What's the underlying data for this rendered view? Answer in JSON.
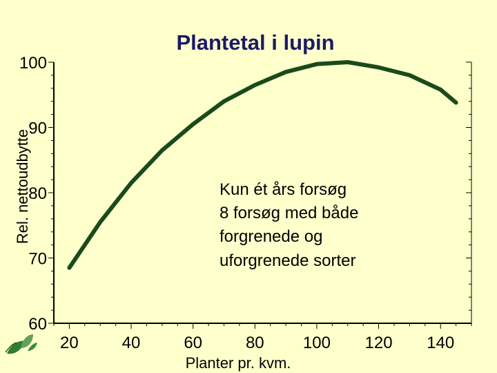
{
  "chart_data": {
    "type": "line",
    "title": "Plantetal i lupin",
    "xlabel": "Planter pr. kvm.",
    "ylabel": "Rel. nettoudbytte",
    "xlim": [
      15,
      150
    ],
    "ylim": [
      60,
      100
    ],
    "x_ticks": [
      "20",
      "40",
      "60",
      "80",
      "100",
      "120",
      "140"
    ],
    "y_ticks": [
      "60",
      "70",
      "80",
      "90",
      "100"
    ],
    "grid": false,
    "series": [
      {
        "color": "#1a4a1a",
        "x": [
          20,
          30,
          40,
          50,
          60,
          70,
          80,
          90,
          100,
          110,
          120,
          130,
          140,
          145
        ],
        "y": [
          68.5,
          75.5,
          81.5,
          86.5,
          90.5,
          94,
          96.5,
          98.5,
          99.7,
          100,
          99.2,
          98,
          95.8,
          93.8
        ]
      }
    ],
    "annotation": [
      "Kun ét års forsøg",
      "8 forsøg med både",
      "forgrenede og",
      "uforgrenede sorter"
    ]
  },
  "colors": {
    "background": "#ffffcc",
    "title": "#1a1a66",
    "curve": "#1a4a1a",
    "logo": "#2e7d32"
  },
  "logo": {
    "icon": "leaf-logo-icon"
  }
}
